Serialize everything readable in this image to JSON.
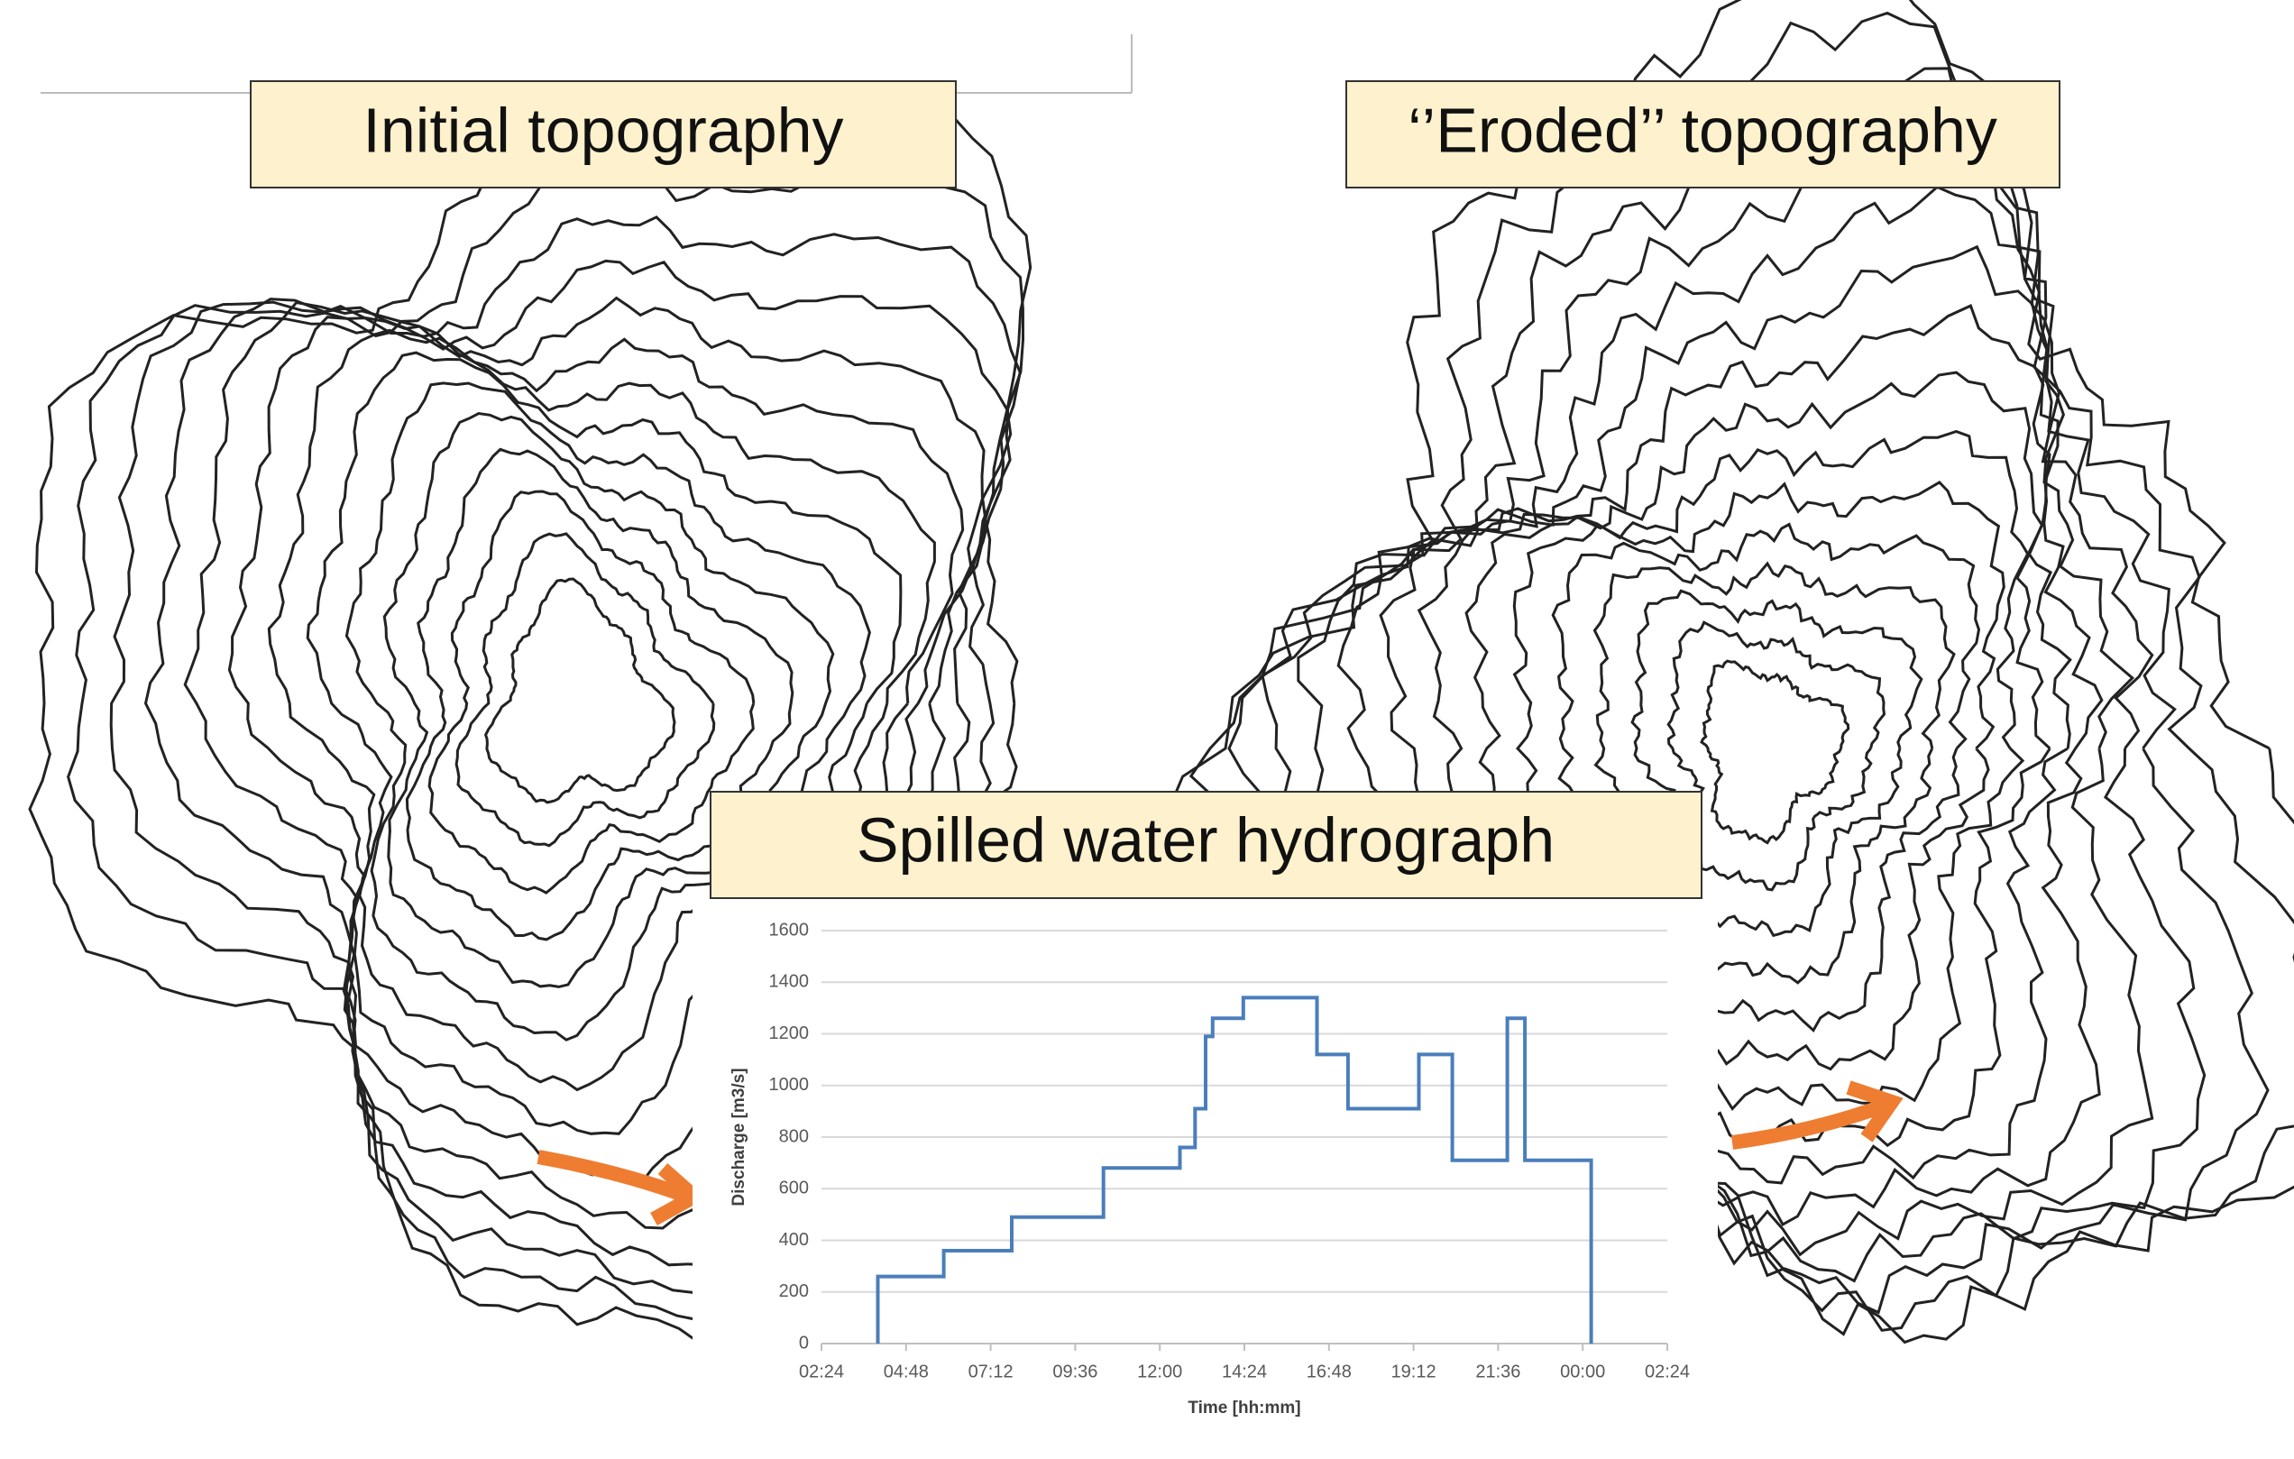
{
  "panels": [
    "Initial topography",
    "‘’Eroded’’ topography"
  ],
  "chart_data": {
    "type": "line",
    "title": "Spilled water hydrograph",
    "x_label": "Time [hh:mm]",
    "y_label": "Discharge [m3/s]",
    "xlim": [
      2.4,
      26.4
    ],
    "xticks": [
      {
        "value": 2.4,
        "label": "02:24"
      },
      {
        "value": 4.8,
        "label": "04:48"
      },
      {
        "value": 7.2,
        "label": "07:12"
      },
      {
        "value": 9.6,
        "label": "09:36"
      },
      {
        "value": 12,
        "label": "12:00"
      },
      {
        "value": 14.4,
        "label": "14:24"
      },
      {
        "value": 16.8,
        "label": "16:48"
      },
      {
        "value": 19.2,
        "label": "19:12"
      },
      {
        "value": 21.6,
        "label": "21:36"
      },
      {
        "value": 24,
        "label": "00:00"
      },
      {
        "value": 26.4,
        "label": "02:24"
      }
    ],
    "ylim": [
      0,
      1600
    ],
    "yticks": [
      0,
      200,
      400,
      600,
      800,
      1000,
      1200,
      1400,
      1600
    ],
    "grid": true,
    "series": [
      {
        "color": "#4a7ebb",
        "x": [
          4.0,
          4.0,
          5.87,
          5.87,
          7.8,
          7.8,
          10.4,
          10.4,
          12.57,
          12.57,
          13.0,
          13.0,
          13.3,
          13.3,
          13.5,
          13.5,
          14.37,
          14.37,
          16.46,
          16.46,
          17.34,
          17.34,
          19.35,
          19.35,
          20.3,
          20.3,
          21.86,
          21.86,
          22.36,
          22.36,
          24.24,
          24.24
        ],
        "values": [
          0,
          260,
          260,
          360,
          360,
          490,
          490,
          680,
          680,
          760,
          760,
          910,
          910,
          1190,
          1190,
          1260,
          1260,
          1340,
          1340,
          1120,
          1120,
          910,
          910,
          1120,
          1120,
          710,
          710,
          1260,
          1260,
          710,
          710,
          0
        ]
      }
    ]
  }
}
